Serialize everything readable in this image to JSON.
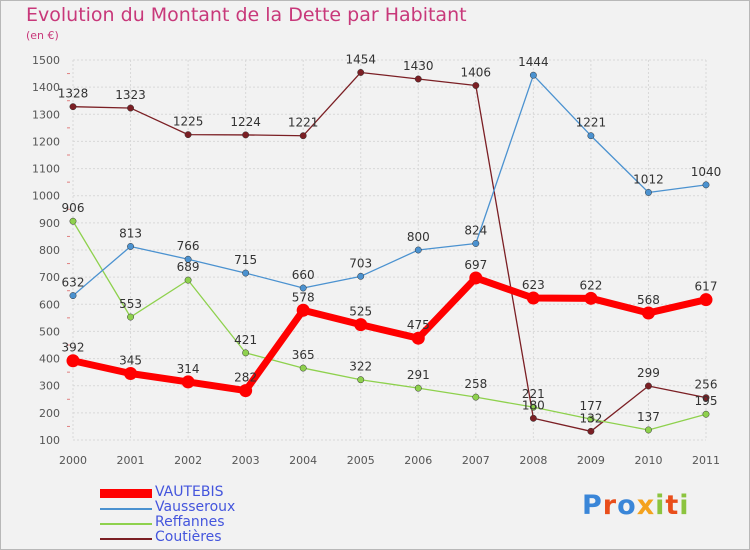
{
  "header": {
    "title": "Evolution du Montant de la Dette par Habitant",
    "unit": "(en €)"
  },
  "logo": {
    "text": "Proxiti",
    "colors": [
      "#3a86d8",
      "#e94e1b",
      "#3a86d8",
      "#f4a21d",
      "#8cc43f",
      "#e94e1b",
      "#8cc43f"
    ]
  },
  "chart_data": {
    "type": "line",
    "title": "Evolution du Montant de la Dette par Habitant",
    "subtitle": "(en €)",
    "xlabel": "",
    "ylabel": "",
    "x": [
      "2000",
      "2001",
      "2002",
      "2003",
      "2004",
      "2005",
      "2006",
      "2007",
      "2008",
      "2009",
      "2010",
      "2011"
    ],
    "ylim": [
      100,
      1500
    ],
    "yticks": [
      "100",
      "200",
      "300",
      "400",
      "500",
      "600",
      "700",
      "800",
      "900",
      "1000",
      "1100",
      "1200",
      "1300",
      "1400",
      "1500"
    ],
    "grid": true,
    "legend_position": "bottom-left",
    "series": [
      {
        "name": "VAUTEBIS",
        "color": "#ff0000",
        "values": [
          392,
          345,
          314,
          282,
          578,
          525,
          475,
          697,
          623,
          622,
          568,
          617
        ]
      },
      {
        "name": "Vausseroux",
        "color": "#4b92d0",
        "values": [
          632,
          813,
          766,
          715,
          660,
          703,
          800,
          824,
          1444,
          1221,
          1012,
          1040
        ]
      },
      {
        "name": "Reffannes",
        "color": "#8ed14d",
        "values": [
          906,
          553,
          689,
          421,
          365,
          322,
          291,
          258,
          221,
          177,
          137,
          195
        ]
      },
      {
        "name": "Coutières",
        "color": "#7b1f24",
        "values": [
          1328,
          1323,
          1225,
          1224,
          1221,
          1454,
          1430,
          1406,
          180,
          132,
          299,
          256
        ]
      }
    ]
  }
}
